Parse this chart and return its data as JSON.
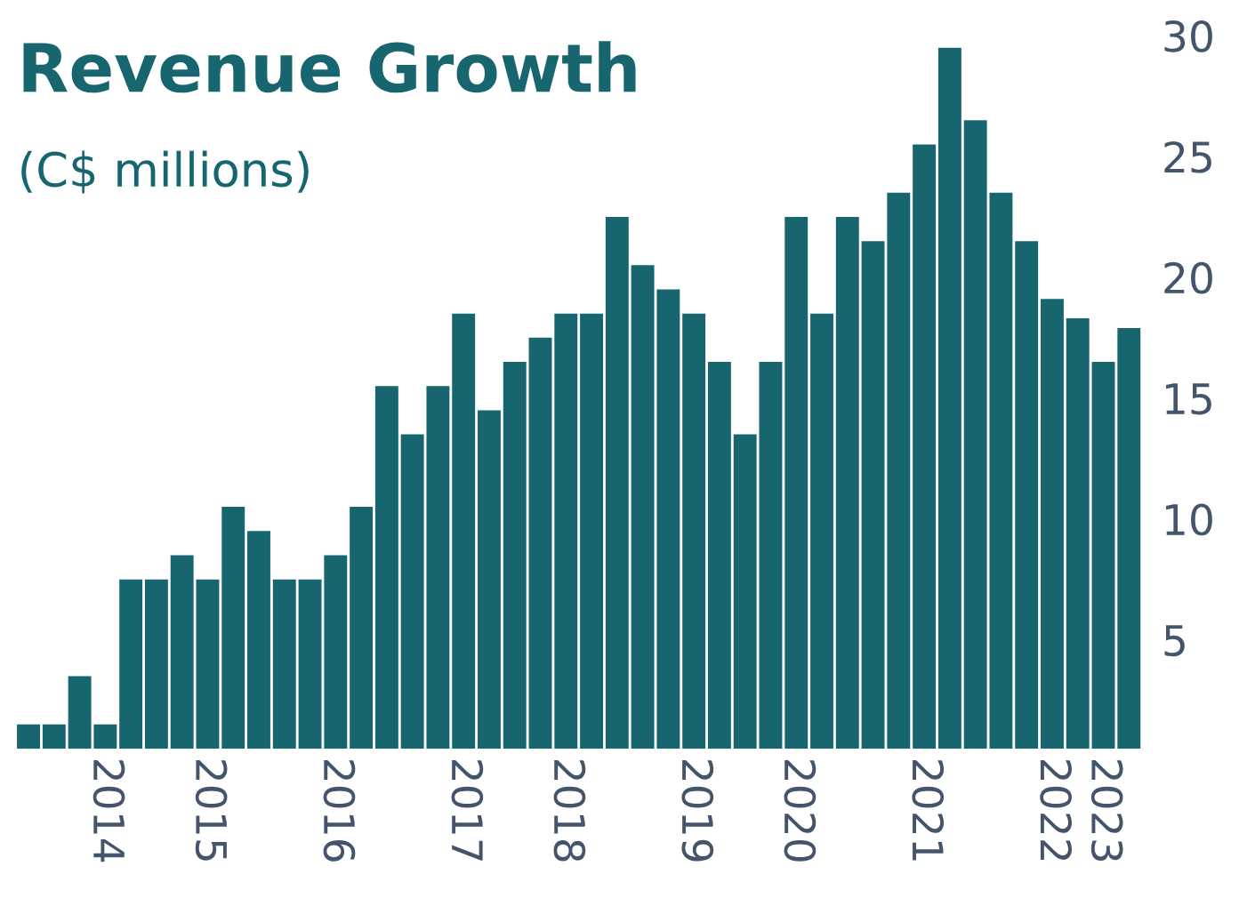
{
  "chart_data": {
    "type": "bar",
    "title": "Revenue Growth",
    "subtitle": "(C$ millions)",
    "categories": [
      null,
      null,
      null,
      "2014",
      null,
      null,
      null,
      "2015",
      null,
      null,
      null,
      null,
      "2016",
      null,
      null,
      null,
      null,
      "2017",
      null,
      null,
      null,
      "2018",
      null,
      null,
      null,
      null,
      "2019",
      null,
      null,
      null,
      "2020",
      null,
      null,
      null,
      null,
      "2021",
      null,
      null,
      null,
      null,
      "2022",
      null,
      "2023",
      null
    ],
    "values": [
      1.5,
      1.5,
      3.5,
      1.5,
      7.5,
      7.5,
      8.5,
      7.5,
      10.5,
      9.5,
      7.5,
      7.5,
      8.5,
      10.5,
      15.5,
      13.5,
      15.5,
      18.5,
      14.5,
      16.5,
      17.5,
      18.5,
      18.5,
      22.5,
      20.5,
      19.5,
      18.5,
      16.5,
      13.5,
      16.5,
      22.5,
      18.5,
      22.5,
      21.5,
      23.5,
      25.5,
      29.5,
      26.5,
      23.5,
      21.5,
      19.1,
      18.3,
      16.5,
      17.9
    ],
    "color": "#17656f",
    "ylim": [
      0.5,
      30
    ],
    "yticks": [
      5,
      10,
      15,
      20,
      25,
      30
    ],
    "grid": false
  }
}
